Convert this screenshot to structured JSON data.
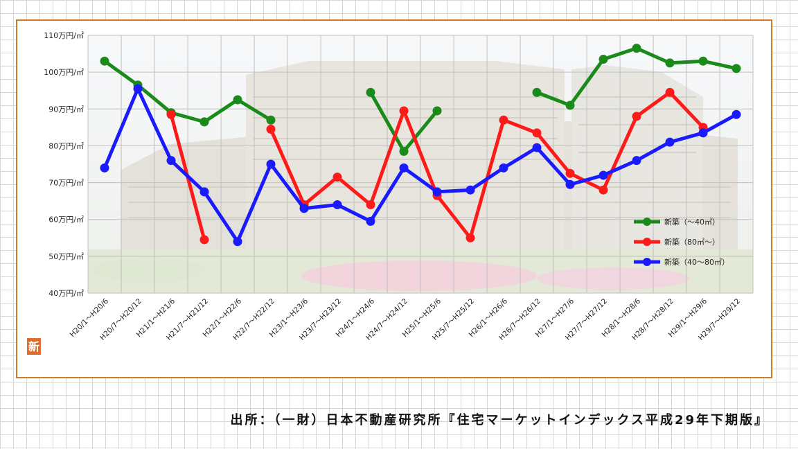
{
  "chart_data": {
    "type": "line",
    "title": "",
    "xlabel": "",
    "ylabel": "",
    "ylim": [
      40,
      110
    ],
    "y_ticks": [
      {
        "value": 40,
        "label": "40万円/㎡"
      },
      {
        "value": 50,
        "label": "50万円/㎡"
      },
      {
        "value": 60,
        "label": "60万円/㎡"
      },
      {
        "value": 70,
        "label": "70万円/㎡"
      },
      {
        "value": 80,
        "label": "80万円/㎡"
      },
      {
        "value": 90,
        "label": "90万円/㎡"
      },
      {
        "value": 100,
        "label": "100万円/㎡"
      },
      {
        "value": 110,
        "label": "110万円/㎡"
      }
    ],
    "grid": true,
    "legend_position": "bottom-right",
    "categories": [
      "H20/1～H20/6",
      "H20/7～H20/12",
      "H21/1～H21/6",
      "H21/7～H21/12",
      "H22/1～H22/6",
      "H22/7～H22/12",
      "H23/1～H23/6",
      "H23/7～H23/12",
      "H24/1～H24/6",
      "H24/7～H24/12",
      "H25/1～H25/6",
      "H25/7～H25/12",
      "H26/1～H26/6",
      "H26/7～H26/12",
      "H27/1～H27/6",
      "H27/7～H27/12",
      "H28/1～H28/6",
      "H28/7～H28/12",
      "H29/1～H29/6",
      "H29/7～H29/12"
    ],
    "series": [
      {
        "name": "新築（～40㎡）",
        "color": "#1a8a1a",
        "values": [
          103,
          96.5,
          89,
          86.5,
          92.5,
          87,
          null,
          null,
          94.5,
          78.5,
          89.5,
          null,
          null,
          94.5,
          91,
          103.5,
          106.5,
          102.5,
          103,
          101
        ]
      },
      {
        "name": "新築（80㎡～）",
        "color": "#ff1a1a",
        "values": [
          null,
          null,
          88.5,
          54.5,
          null,
          84.5,
          64,
          71.5,
          64,
          89.5,
          66.5,
          55,
          87,
          83.5,
          72.5,
          68,
          88,
          94.5,
          85,
          null
        ]
      },
      {
        "name": "新築（40～80㎡）",
        "color": "#1a1aff",
        "values": [
          74,
          95.5,
          76,
          67.5,
          54,
          75,
          63,
          64,
          59.5,
          74,
          67.5,
          68,
          74,
          79.5,
          69.5,
          72,
          76,
          81,
          83.5,
          88.5
        ]
      }
    ]
  },
  "logo_char": "新",
  "source_text": "出所：（一財）日本不動産研究所『住宅マーケットインデックス平成29年下期版』"
}
